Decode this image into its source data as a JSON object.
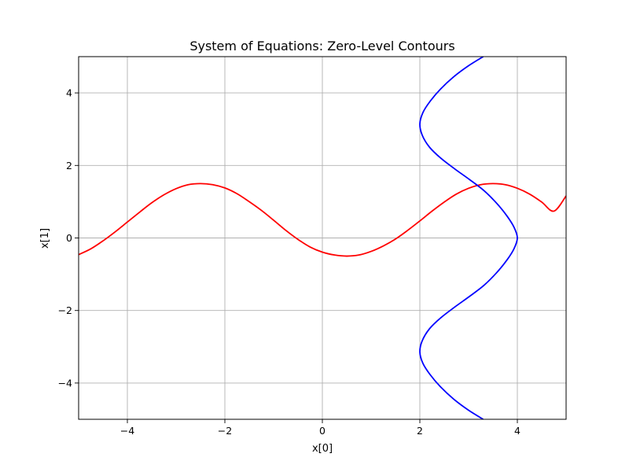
{
  "chart_data": {
    "type": "line",
    "title": "System of Equations: Zero-Level Contours",
    "xlabel": "x[0]",
    "ylabel": "x[1]",
    "xlim": [
      -5,
      5
    ],
    "ylim": [
      -5,
      5
    ],
    "xticks": [
      -4,
      -2,
      0,
      2,
      4
    ],
    "yticks": [
      -4,
      -2,
      0,
      2,
      4
    ],
    "xtick_labels": [
      "−4",
      "−2",
      "0",
      "2",
      "4"
    ],
    "ytick_labels": [
      "−4",
      "−2",
      "0",
      "2",
      "4"
    ],
    "grid": true,
    "series": [
      {
        "color": "#ff0000",
        "x": [
          -5.0,
          -4.75,
          -4.5,
          -4.25,
          -4.0,
          -3.75,
          -3.5,
          -3.25,
          -3.0,
          -2.75,
          -2.5,
          -2.25,
          -2.0,
          -1.75,
          -1.5,
          -1.25,
          -1.0,
          -0.75,
          -0.5,
          -0.25,
          0.0,
          0.25,
          0.5,
          0.75,
          1.0,
          1.25,
          1.5,
          1.75,
          2.0,
          2.25,
          2.5,
          2.75,
          3.0,
          3.25,
          3.5,
          3.75,
          4.0,
          4.25,
          4.5,
          4.75,
          5.0
        ],
        "y": [
          -0.46,
          -0.3,
          -0.08,
          0.17,
          0.44,
          0.71,
          0.97,
          1.19,
          1.36,
          1.47,
          1.5,
          1.47,
          1.38,
          1.22,
          1.0,
          0.76,
          0.49,
          0.21,
          -0.04,
          -0.25,
          -0.39,
          -0.47,
          -0.5,
          -0.47,
          -0.37,
          -0.22,
          -0.03,
          0.21,
          0.47,
          0.74,
          0.99,
          1.21,
          1.37,
          1.47,
          1.5,
          1.47,
          1.37,
          1.21,
          0.99,
          0.74,
          1.16
        ]
      },
      {
        "color": "#0000ff",
        "x": [
          3.3,
          3.0,
          2.7,
          2.42,
          2.2,
          2.06,
          2.0,
          2.05,
          2.2,
          2.43,
          2.72,
          3.03,
          3.32,
          3.58,
          3.78,
          3.93,
          4.0,
          3.93,
          3.78,
          3.58,
          3.32,
          3.03,
          2.72,
          2.43,
          2.2,
          2.05,
          2.0,
          2.06,
          2.2,
          2.42,
          2.7,
          3.0,
          3.3
        ],
        "y": [
          5.0,
          4.75,
          4.45,
          4.1,
          3.75,
          3.45,
          3.14,
          2.83,
          2.5,
          2.2,
          1.9,
          1.6,
          1.3,
          0.95,
          0.62,
          0.3,
          0.0,
          -0.3,
          -0.62,
          -0.95,
          -1.3,
          -1.6,
          -1.9,
          -2.2,
          -2.5,
          -2.83,
          -3.14,
          -3.45,
          -3.75,
          -4.1,
          -4.45,
          -4.75,
          -5.0
        ]
      }
    ]
  }
}
